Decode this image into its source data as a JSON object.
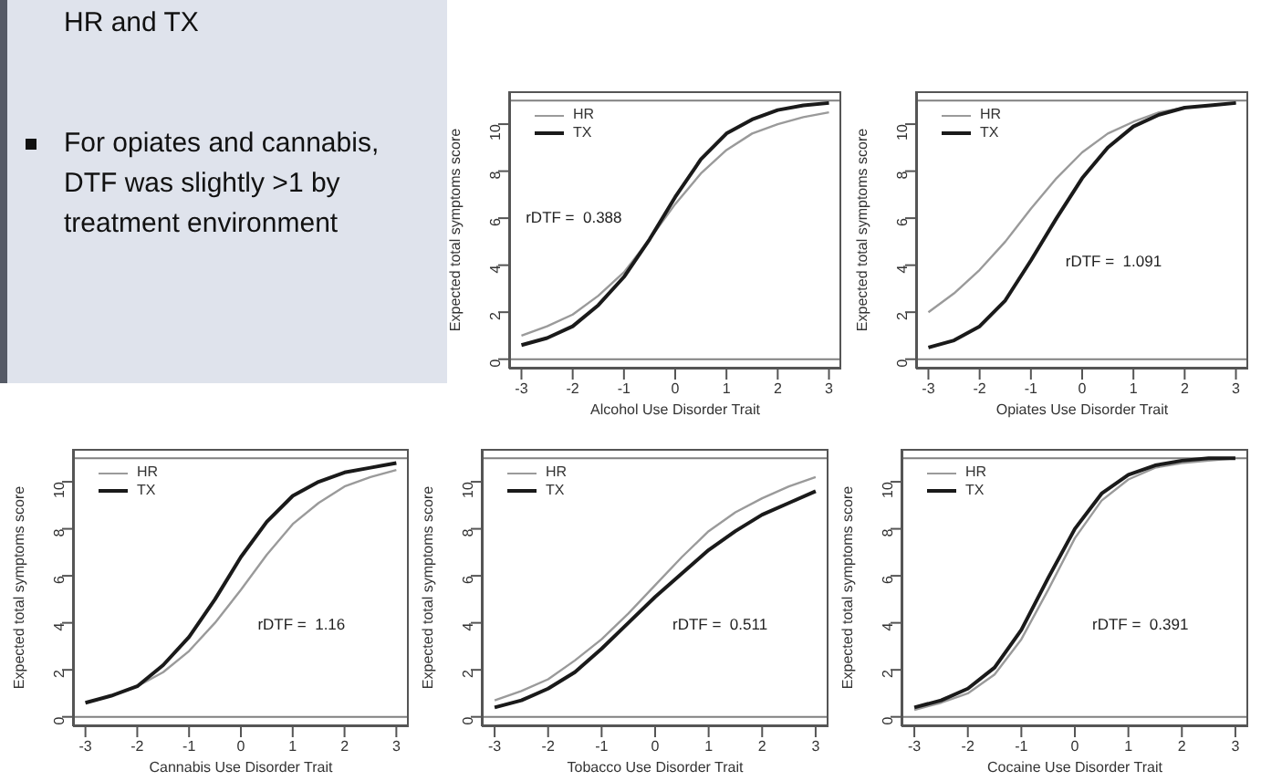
{
  "chart_data": [
    {
      "type": "other",
      "annotations": [
        "HR and TX",
        "For opiates and cannabis, DTF was slightly >1 by treatment environment"
      ]
    },
    {
      "type": "line",
      "xlabel": "Alcohol Use Disorder Trait",
      "ylabel": "Expected total symptoms score",
      "annotations": [
        "rDTF =  0.388"
      ],
      "x": [
        -3,
        -2.5,
        -2,
        -1.5,
        -1,
        -0.5,
        0,
        0.5,
        1,
        1.5,
        2,
        2.5,
        3
      ],
      "xlim": [
        -3.24,
        3.24
      ],
      "xticks": [
        -3,
        -2,
        -1,
        0,
        1,
        2,
        3
      ],
      "ylim": [
        -0.4,
        11.4
      ],
      "yticks": [
        0,
        2,
        4,
        6,
        8,
        10
      ],
      "legend": "top left",
      "marker": "none",
      "ref_lines": [
        {
          "axis": "y",
          "value": 0,
          "color": "#808080"
        },
        {
          "axis": "y",
          "value": 11,
          "color": "#808080"
        }
      ],
      "series": [
        {
          "name": "HR",
          "color": "#9a9a9a",
          "values": [
            1.0,
            1.4,
            1.9,
            2.7,
            3.7,
            5.1,
            6.6,
            7.9,
            8.9,
            9.6,
            10.0,
            10.3,
            10.5
          ]
        },
        {
          "name": "TX",
          "color": "#1a1a1a",
          "values": [
            0.6,
            0.9,
            1.4,
            2.3,
            3.5,
            5.1,
            6.9,
            8.5,
            9.6,
            10.2,
            10.6,
            10.8,
            10.9
          ]
        }
      ]
    },
    {
      "type": "line",
      "xlabel": "Opiates Use Disorder Trait",
      "ylabel": "Expected total symptoms score",
      "annotations": [
        "rDTF =  1.091"
      ],
      "x": [
        -3,
        -2.5,
        -2,
        -1.5,
        -1,
        -0.5,
        0,
        0.5,
        1,
        1.5,
        2,
        2.5,
        3
      ],
      "xlim": [
        -3.24,
        3.24
      ],
      "xticks": [
        -3,
        -2,
        -1,
        0,
        1,
        2,
        3
      ],
      "ylim": [
        -0.4,
        11.4
      ],
      "yticks": [
        0,
        2,
        4,
        6,
        8,
        10
      ],
      "legend": "top left",
      "marker": "none",
      "ref_lines": [
        {
          "axis": "y",
          "value": 0,
          "color": "#808080"
        },
        {
          "axis": "y",
          "value": 11,
          "color": "#808080"
        }
      ],
      "series": [
        {
          "name": "HR",
          "color": "#9a9a9a",
          "values": [
            2.0,
            2.8,
            3.8,
            5.0,
            6.4,
            7.7,
            8.8,
            9.6,
            10.1,
            10.5,
            10.7,
            10.8,
            10.9
          ]
        },
        {
          "name": "TX",
          "color": "#1a1a1a",
          "values": [
            0.5,
            0.8,
            1.4,
            2.5,
            4.2,
            6.0,
            7.7,
            9.0,
            9.9,
            10.4,
            10.7,
            10.8,
            10.9
          ]
        }
      ]
    },
    {
      "type": "line",
      "xlabel": "Cannabis Use Disorder Trait",
      "ylabel": "Expected total symptoms score",
      "annotations": [
        "rDTF =  1.16"
      ],
      "x": [
        -3,
        -2.5,
        -2,
        -1.5,
        -1,
        -0.5,
        0,
        0.5,
        1,
        1.5,
        2,
        2.5,
        3
      ],
      "xlim": [
        -3.24,
        3.24
      ],
      "xticks": [
        -3,
        -2,
        -1,
        0,
        1,
        2,
        3
      ],
      "ylim": [
        -0.4,
        11.4
      ],
      "yticks": [
        0,
        2,
        4,
        6,
        8,
        10
      ],
      "legend": "top left",
      "marker": "none",
      "ref_lines": [
        {
          "axis": "y",
          "value": 0,
          "color": "#808080"
        },
        {
          "axis": "y",
          "value": 11,
          "color": "#808080"
        }
      ],
      "series": [
        {
          "name": "HR",
          "color": "#9a9a9a",
          "values": [
            0.6,
            0.9,
            1.3,
            1.9,
            2.8,
            4.0,
            5.4,
            6.9,
            8.2,
            9.1,
            9.8,
            10.2,
            10.5
          ]
        },
        {
          "name": "TX",
          "color": "#1a1a1a",
          "values": [
            0.6,
            0.9,
            1.3,
            2.2,
            3.4,
            5.0,
            6.8,
            8.3,
            9.4,
            10.0,
            10.4,
            10.6,
            10.8
          ]
        }
      ]
    },
    {
      "type": "line",
      "xlabel": "Tobacco Use Disorder Trait",
      "ylabel": "Expected total symptoms score",
      "annotations": [
        "rDTF =  0.511"
      ],
      "x": [
        -3,
        -2.5,
        -2,
        -1.5,
        -1,
        -0.5,
        0,
        0.5,
        1,
        1.5,
        2,
        2.5,
        3
      ],
      "xlim": [
        -3.24,
        3.24
      ],
      "xticks": [
        -3,
        -2,
        -1,
        0,
        1,
        2,
        3
      ],
      "ylim": [
        -0.4,
        11.4
      ],
      "yticks": [
        0,
        2,
        4,
        6,
        8,
        10
      ],
      "legend": "top left",
      "marker": "none",
      "ref_lines": [
        {
          "axis": "y",
          "value": 0,
          "color": "#808080"
        },
        {
          "axis": "y",
          "value": 11,
          "color": "#808080"
        }
      ],
      "series": [
        {
          "name": "HR",
          "color": "#9a9a9a",
          "values": [
            0.7,
            1.1,
            1.6,
            2.4,
            3.3,
            4.4,
            5.6,
            6.8,
            7.9,
            8.7,
            9.3,
            9.8,
            10.2
          ]
        },
        {
          "name": "TX",
          "color": "#1a1a1a",
          "values": [
            0.4,
            0.7,
            1.2,
            1.9,
            2.9,
            4.0,
            5.1,
            6.1,
            7.1,
            7.9,
            8.6,
            9.1,
            9.6
          ]
        }
      ]
    },
    {
      "type": "line",
      "xlabel": "Cocaine Use Disorder Trait",
      "ylabel": "Expected total symptoms score",
      "annotations": [
        "rDTF =  0.391"
      ],
      "x": [
        -3,
        -2.5,
        -2,
        -1.5,
        -1,
        -0.5,
        0,
        0.5,
        1,
        1.5,
        2,
        2.5,
        3
      ],
      "xlim": [
        -3.24,
        3.24
      ],
      "xticks": [
        -3,
        -2,
        -1,
        0,
        1,
        2,
        3
      ],
      "ylim": [
        -0.4,
        11.4
      ],
      "yticks": [
        0,
        2,
        4,
        6,
        8,
        10
      ],
      "legend": "top left",
      "marker": "none",
      "ref_lines": [
        {
          "axis": "y",
          "value": 0,
          "color": "#808080"
        },
        {
          "axis": "y",
          "value": 11,
          "color": "#808080"
        }
      ],
      "series": [
        {
          "name": "HR",
          "color": "#9a9a9a",
          "values": [
            0.3,
            0.6,
            1.0,
            1.8,
            3.3,
            5.4,
            7.6,
            9.2,
            10.1,
            10.6,
            10.8,
            10.9,
            11.0
          ]
        },
        {
          "name": "TX",
          "color": "#1a1a1a",
          "values": [
            0.4,
            0.7,
            1.2,
            2.1,
            3.7,
            5.9,
            8.0,
            9.5,
            10.3,
            10.7,
            10.9,
            11.0,
            11.0
          ]
        }
      ]
    }
  ]
}
